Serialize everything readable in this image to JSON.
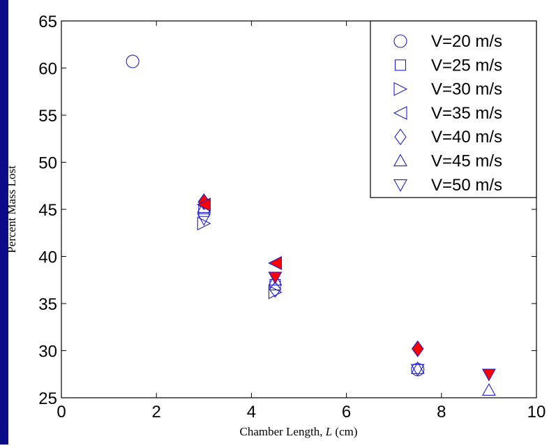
{
  "colors": {
    "frame": "#0b0b8a",
    "marker_stroke": "#1f1fd0",
    "marker_fill_red": "#ff0000",
    "axes": "#000000",
    "background": "#ffffff"
  },
  "chart_data": {
    "type": "scatter",
    "title": "",
    "xlabel_prefix": "Chamber Length, ",
    "xlabel_var": "L",
    "xlabel_suffix": " (cm)",
    "ylabel": "Percent Mass Lost",
    "xlim": [
      0,
      10
    ],
    "ylim": [
      25,
      65
    ],
    "xticks": [
      0,
      2,
      4,
      6,
      8,
      10
    ],
    "yticks": [
      25,
      30,
      35,
      40,
      45,
      50,
      55,
      60,
      65
    ],
    "grid": false,
    "legend_position": "top-right",
    "series": [
      {
        "name": "V=20 m/s",
        "marker": "circle",
        "x": [
          1.5,
          7.5
        ],
        "y": [
          60.7,
          28.0
        ]
      },
      {
        "name": "V=25 m/s",
        "marker": "square",
        "x": [
          3.0,
          4.5
        ],
        "y": [
          44.8,
          37.0
        ]
      },
      {
        "name": "V=30 m/s",
        "marker": "triangle-right",
        "x": [
          3.0,
          4.5
        ],
        "y": [
          43.5,
          36.2
        ]
      },
      {
        "name": "V=35 m/s",
        "marker": "triangle-left",
        "x": [
          3.0,
          4.5
        ],
        "y": [
          45.5,
          39.3
        ]
      },
      {
        "name": "V=40 m/s",
        "marker": "diamond",
        "x": [
          3.0,
          4.5,
          7.5
        ],
        "y": [
          45.8,
          36.5,
          30.2
        ]
      },
      {
        "name": "V=45 m/s",
        "marker": "triangle-up",
        "x": [
          3.0,
          4.5,
          7.5,
          9.0
        ],
        "y": [
          45.2,
          37.5,
          28.1,
          25.8
        ]
      },
      {
        "name": "V=50 m/s",
        "marker": "triangle-down",
        "x": [
          3.0,
          4.5,
          7.5,
          9.0
        ],
        "y": [
          44.0,
          37.8,
          28.0,
          27.5
        ]
      }
    ],
    "filled_points": [
      {
        "marker": "triangle-left",
        "x": 4.5,
        "y": 39.3
      },
      {
        "marker": "triangle-down",
        "x": 4.5,
        "y": 37.8
      },
      {
        "marker": "diamond",
        "x": 3.0,
        "y": 45.8
      },
      {
        "marker": "triangle-left",
        "x": 3.0,
        "y": 45.5
      },
      {
        "marker": "diamond",
        "x": 7.5,
        "y": 30.2
      },
      {
        "marker": "triangle-down",
        "x": 9.0,
        "y": 27.5
      }
    ]
  }
}
